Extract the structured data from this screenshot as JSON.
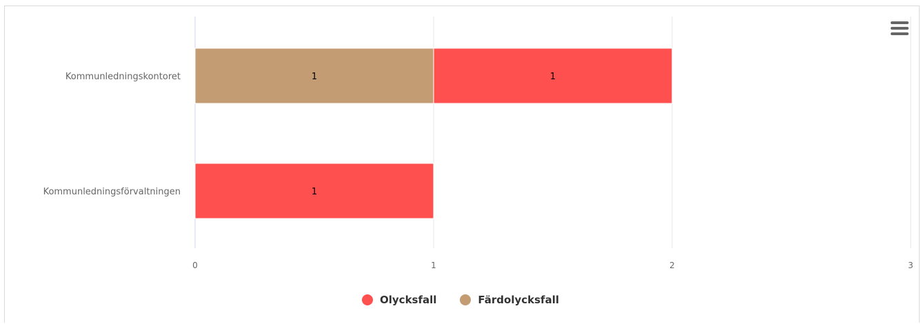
{
  "chart_data": {
    "type": "bar",
    "orientation": "horizontal",
    "stacked": true,
    "categories": [
      "Kommunledningskontoret",
      "Kommunledningsförvaltningen"
    ],
    "series": [
      {
        "name": "Olycksfall",
        "color": "#ff5050",
        "values": [
          1,
          1
        ]
      },
      {
        "name": "Färdolycksfall",
        "color": "#c49c74",
        "values": [
          1,
          0
        ]
      }
    ],
    "stack_order_from_axis": [
      "Färdolycksfall",
      "Olycksfall"
    ],
    "xlim": [
      0,
      3
    ],
    "x_ticks": [
      "0",
      "1",
      "2",
      "3"
    ],
    "data_labels": true,
    "grid": true,
    "legend_position": "bottom-center",
    "title": "",
    "xlabel": "",
    "ylabel": ""
  },
  "toolbar": {
    "menu_icon": "hamburger-menu-icon"
  }
}
